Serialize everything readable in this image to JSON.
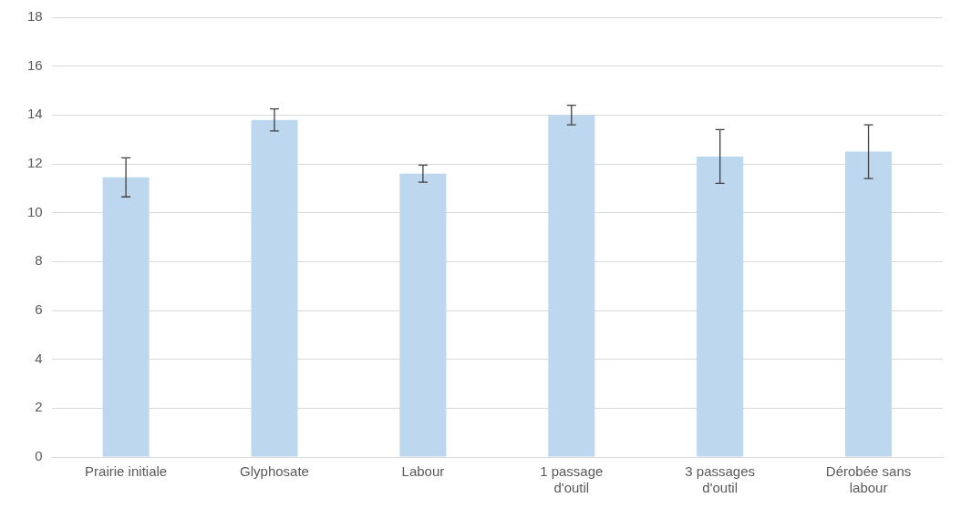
{
  "chart_data": {
    "type": "bar",
    "categories": [
      "Prairie initiale",
      "Glyphosate",
      "Labour",
      "1 passage d'outil",
      "3 passages d'outil",
      "Dérobée sans labour"
    ],
    "values": [
      11.45,
      13.8,
      11.6,
      14.0,
      12.3,
      12.5
    ],
    "errors": [
      0.8,
      0.45,
      0.35,
      0.4,
      1.1,
      1.1
    ],
    "color": "#bdd7ee",
    "ylim": [
      0,
      18
    ],
    "yticks": [
      0,
      2,
      4,
      6,
      8,
      10,
      12,
      14,
      16,
      18
    ],
    "grid": "y",
    "legend": false
  }
}
